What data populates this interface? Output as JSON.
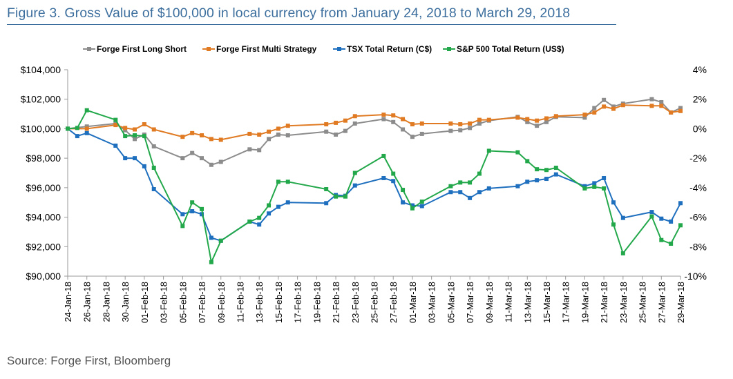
{
  "figure_title": "Figure 3. Gross Value of $100,000 in local currency from January 24, 2018 to March 29, 2018",
  "source": "Source: Forge First, Bloomberg",
  "chart_data": {
    "type": "line",
    "title": "",
    "legend_position": "top",
    "grid": false,
    "x_tick_labels": [
      "24-Jan-18",
      "26-Jan-18",
      "28-Jan-18",
      "30-Jan-18",
      "01-Feb-18",
      "03-Feb-18",
      "05-Feb-18",
      "07-Feb-18",
      "09-Feb-18",
      "11-Feb-18",
      "13-Feb-18",
      "15-Feb-18",
      "17-Feb-18",
      "19-Feb-18",
      "21-Feb-18",
      "23-Feb-18",
      "25-Feb-18",
      "27-Feb-18",
      "01-Mar-18",
      "03-Mar-18",
      "05-Mar-18",
      "07-Mar-18",
      "09-Mar-18",
      "11-Mar-18",
      "13-Mar-18",
      "15-Mar-18",
      "17-Mar-18",
      "19-Mar-18",
      "21-Mar-18",
      "23-Mar-18",
      "25-Mar-18",
      "27-Mar-18",
      "29-Mar-18"
    ],
    "x_range": [
      "2018-01-24",
      "2018-03-29"
    ],
    "y_left": {
      "ylim": [
        90000,
        104000
      ],
      "ticks": [
        90000,
        92000,
        94000,
        96000,
        98000,
        100000,
        102000,
        104000
      ],
      "tick_labels": [
        "$90,000",
        "$92,000",
        "$94,000",
        "$96,000",
        "$98,000",
        "$100,000",
        "$102,000",
        "$104,000"
      ]
    },
    "y_right": {
      "ylim": [
        -10,
        4
      ],
      "ticks": [
        -10,
        -8,
        -6,
        -4,
        -2,
        0,
        2,
        4
      ],
      "tick_labels": [
        "-10%",
        "-8%",
        "-6%",
        "-4%",
        "-2%",
        "0%",
        "2%",
        "4%"
      ]
    },
    "series": [
      {
        "name": "Forge First Long Short",
        "color": "#8c8c8c",
        "marker": "square",
        "axis": "left",
        "points": [
          [
            "2018-01-24",
            100000
          ],
          [
            "2018-01-26",
            100150
          ],
          [
            "2018-01-29",
            100350
          ],
          [
            "2018-01-30",
            99900
          ],
          [
            "2018-01-31",
            99300
          ],
          [
            "2018-02-01",
            99600
          ],
          [
            "2018-02-02",
            98800
          ],
          [
            "2018-02-05",
            98000
          ],
          [
            "2018-02-06",
            98350
          ],
          [
            "2018-02-07",
            98000
          ],
          [
            "2018-02-08",
            97550
          ],
          [
            "2018-02-09",
            97750
          ],
          [
            "2018-02-12",
            98600
          ],
          [
            "2018-02-13",
            98550
          ],
          [
            "2018-02-14",
            99300
          ],
          [
            "2018-02-15",
            99600
          ],
          [
            "2018-02-16",
            99550
          ],
          [
            "2018-02-20",
            99800
          ],
          [
            "2018-02-21",
            99600
          ],
          [
            "2018-02-22",
            99850
          ],
          [
            "2018-02-23",
            100350
          ],
          [
            "2018-02-26",
            100650
          ],
          [
            "2018-02-27",
            100450
          ],
          [
            "2018-02-28",
            99950
          ],
          [
            "2018-03-01",
            99450
          ],
          [
            "2018-03-02",
            99650
          ],
          [
            "2018-03-05",
            99850
          ],
          [
            "2018-03-06",
            99900
          ],
          [
            "2018-03-07",
            100050
          ],
          [
            "2018-03-08",
            100350
          ],
          [
            "2018-03-09",
            100550
          ],
          [
            "2018-03-12",
            100800
          ],
          [
            "2018-03-13",
            100450
          ],
          [
            "2018-03-14",
            100200
          ],
          [
            "2018-03-15",
            100450
          ],
          [
            "2018-03-16",
            100800
          ],
          [
            "2018-03-19",
            100750
          ],
          [
            "2018-03-20",
            101400
          ],
          [
            "2018-03-21",
            101950
          ],
          [
            "2018-03-22",
            101500
          ],
          [
            "2018-03-23",
            101700
          ],
          [
            "2018-03-26",
            102000
          ],
          [
            "2018-03-27",
            101800
          ],
          [
            "2018-03-28",
            101100
          ],
          [
            "2018-03-29",
            101400
          ]
        ]
      },
      {
        "name": "Forge First Multi Strategy",
        "color": "#e07b24",
        "marker": "square",
        "axis": "left",
        "points": [
          [
            "2018-01-24",
            100000
          ],
          [
            "2018-01-26",
            100000
          ],
          [
            "2018-01-29",
            100250
          ],
          [
            "2018-01-30",
            100050
          ],
          [
            "2018-01-31",
            99950
          ],
          [
            "2018-02-01",
            100300
          ],
          [
            "2018-02-02",
            99950
          ],
          [
            "2018-02-05",
            99450
          ],
          [
            "2018-02-06",
            99700
          ],
          [
            "2018-02-07",
            99550
          ],
          [
            "2018-02-08",
            99300
          ],
          [
            "2018-02-09",
            99250
          ],
          [
            "2018-02-12",
            99650
          ],
          [
            "2018-02-13",
            99600
          ],
          [
            "2018-02-14",
            99800
          ],
          [
            "2018-02-15",
            100000
          ],
          [
            "2018-02-16",
            100200
          ],
          [
            "2018-02-20",
            100300
          ],
          [
            "2018-02-21",
            100400
          ],
          [
            "2018-02-22",
            100550
          ],
          [
            "2018-02-23",
            100850
          ],
          [
            "2018-02-26",
            100950
          ],
          [
            "2018-02-27",
            100900
          ],
          [
            "2018-02-28",
            100650
          ],
          [
            "2018-03-01",
            100300
          ],
          [
            "2018-03-02",
            100350
          ],
          [
            "2018-03-05",
            100350
          ],
          [
            "2018-03-06",
            100300
          ],
          [
            "2018-03-07",
            100350
          ],
          [
            "2018-03-08",
            100600
          ],
          [
            "2018-03-09",
            100600
          ],
          [
            "2018-03-12",
            100750
          ],
          [
            "2018-03-13",
            100650
          ],
          [
            "2018-03-14",
            100550
          ],
          [
            "2018-03-15",
            100700
          ],
          [
            "2018-03-16",
            100850
          ],
          [
            "2018-03-19",
            100950
          ],
          [
            "2018-03-20",
            101100
          ],
          [
            "2018-03-21",
            101500
          ],
          [
            "2018-03-22",
            101350
          ],
          [
            "2018-03-23",
            101600
          ],
          [
            "2018-03-26",
            101550
          ],
          [
            "2018-03-27",
            101550
          ],
          [
            "2018-03-28",
            101100
          ],
          [
            "2018-03-29",
            101200
          ]
        ]
      },
      {
        "name": "TSX Total Return (C$)",
        "color": "#1f6fbf",
        "marker": "square",
        "axis": "left",
        "points": [
          [
            "2018-01-24",
            100000
          ],
          [
            "2018-01-25",
            99500
          ],
          [
            "2018-01-26",
            99700
          ],
          [
            "2018-01-29",
            98850
          ],
          [
            "2018-01-30",
            98000
          ],
          [
            "2018-01-31",
            98000
          ],
          [
            "2018-02-01",
            97450
          ],
          [
            "2018-02-02",
            95900
          ],
          [
            "2018-02-05",
            94200
          ],
          [
            "2018-02-06",
            94400
          ],
          [
            "2018-02-07",
            94200
          ],
          [
            "2018-02-08",
            92600
          ],
          [
            "2018-02-09",
            92400
          ],
          [
            "2018-02-12",
            93700
          ],
          [
            "2018-02-13",
            93500
          ],
          [
            "2018-02-14",
            94250
          ],
          [
            "2018-02-15",
            94700
          ],
          [
            "2018-02-16",
            95000
          ],
          [
            "2018-02-20",
            94950
          ],
          [
            "2018-02-21",
            95500
          ],
          [
            "2018-02-22",
            95450
          ],
          [
            "2018-02-23",
            96150
          ],
          [
            "2018-02-26",
            96650
          ],
          [
            "2018-02-27",
            96450
          ],
          [
            "2018-02-28",
            95000
          ],
          [
            "2018-03-01",
            94800
          ],
          [
            "2018-03-02",
            94750
          ],
          [
            "2018-03-05",
            95700
          ],
          [
            "2018-03-06",
            95700
          ],
          [
            "2018-03-07",
            95300
          ],
          [
            "2018-03-08",
            95700
          ],
          [
            "2018-03-09",
            95950
          ],
          [
            "2018-03-12",
            96100
          ],
          [
            "2018-03-13",
            96400
          ],
          [
            "2018-03-14",
            96500
          ],
          [
            "2018-03-15",
            96600
          ],
          [
            "2018-03-16",
            96900
          ],
          [
            "2018-03-19",
            96100
          ],
          [
            "2018-03-20",
            96300
          ],
          [
            "2018-03-21",
            96650
          ],
          [
            "2018-03-22",
            95000
          ],
          [
            "2018-03-23",
            93950
          ],
          [
            "2018-03-26",
            94350
          ],
          [
            "2018-03-27",
            93900
          ],
          [
            "2018-03-28",
            93700
          ],
          [
            "2018-03-29",
            94950
          ]
        ]
      },
      {
        "name": "S&P 500 Total Return (US$)",
        "color": "#22a84a",
        "marker": "square",
        "axis": "left",
        "points": [
          [
            "2018-01-24",
            100000
          ],
          [
            "2018-01-25",
            100050
          ],
          [
            "2018-01-26",
            101250
          ],
          [
            "2018-01-29",
            100600
          ],
          [
            "2018-01-30",
            99500
          ],
          [
            "2018-01-31",
            99550
          ],
          [
            "2018-02-01",
            99500
          ],
          [
            "2018-02-02",
            97350
          ],
          [
            "2018-02-05",
            93400
          ],
          [
            "2018-02-06",
            95000
          ],
          [
            "2018-02-07",
            94550
          ],
          [
            "2018-02-08",
            90950
          ],
          [
            "2018-02-09",
            92400
          ],
          [
            "2018-02-12",
            93700
          ],
          [
            "2018-02-13",
            93950
          ],
          [
            "2018-02-14",
            94800
          ],
          [
            "2018-02-15",
            96400
          ],
          [
            "2018-02-16",
            96400
          ],
          [
            "2018-02-20",
            95900
          ],
          [
            "2018-02-21",
            95400
          ],
          [
            "2018-02-22",
            95400
          ],
          [
            "2018-02-23",
            97000
          ],
          [
            "2018-02-26",
            98150
          ],
          [
            "2018-02-27",
            96950
          ],
          [
            "2018-02-28",
            95850
          ],
          [
            "2018-03-01",
            94600
          ],
          [
            "2018-03-02",
            95050
          ],
          [
            "2018-03-05",
            96100
          ],
          [
            "2018-03-06",
            96350
          ],
          [
            "2018-03-07",
            96350
          ],
          [
            "2018-03-08",
            96950
          ],
          [
            "2018-03-09",
            98500
          ],
          [
            "2018-03-12",
            98400
          ],
          [
            "2018-03-13",
            97800
          ],
          [
            "2018-03-14",
            97250
          ],
          [
            "2018-03-15",
            97200
          ],
          [
            "2018-03-16",
            97350
          ],
          [
            "2018-03-19",
            95950
          ],
          [
            "2018-03-20",
            96050
          ],
          [
            "2018-03-21",
            95950
          ],
          [
            "2018-03-22",
            93500
          ],
          [
            "2018-03-23",
            91550
          ],
          [
            "2018-03-26",
            94050
          ],
          [
            "2018-03-27",
            92450
          ],
          [
            "2018-03-28",
            92200
          ],
          [
            "2018-03-29",
            93450
          ]
        ]
      }
    ]
  }
}
